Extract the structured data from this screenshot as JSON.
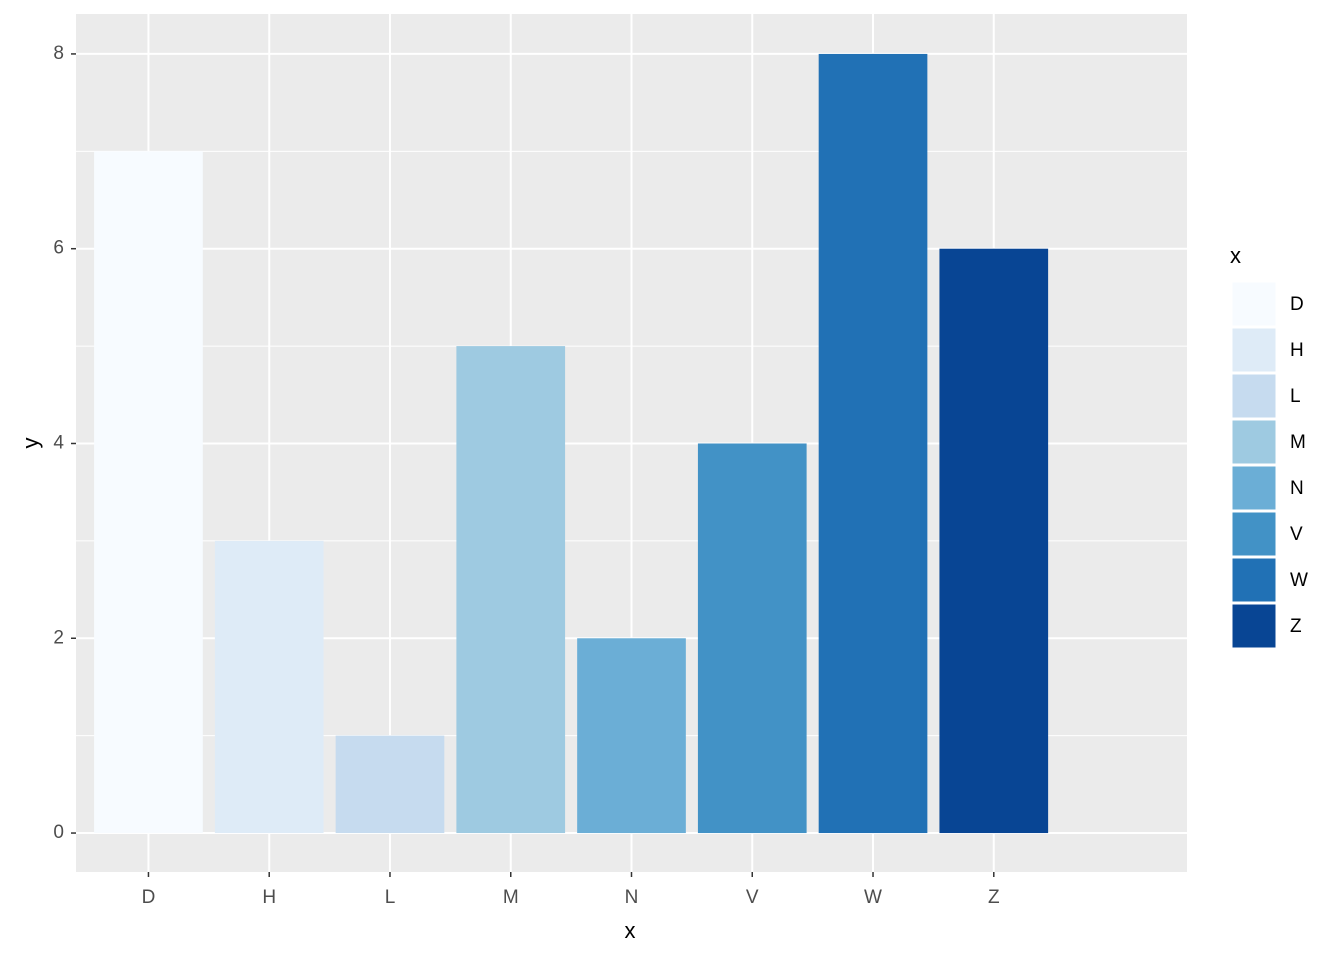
{
  "chart_data": {
    "type": "bar",
    "categories": [
      "D",
      "H",
      "L",
      "M",
      "N",
      "V",
      "W",
      "Z"
    ],
    "values": [
      7,
      3,
      1,
      5,
      2,
      4,
      8,
      6
    ],
    "colors": [
      "#f7fbff",
      "#deebf7",
      "#c6dbef",
      "#9ecae1",
      "#6baed6",
      "#4292c6",
      "#2171b5",
      "#084594"
    ],
    "x_label": "x",
    "y_label": "y",
    "legend_title": "x",
    "ylim": [
      -0.4,
      8.41
    ],
    "yticks": [
      0,
      2,
      4,
      6,
      8
    ],
    "yminor": [
      1,
      3,
      5,
      7
    ],
    "grid": true,
    "legend": "right"
  }
}
